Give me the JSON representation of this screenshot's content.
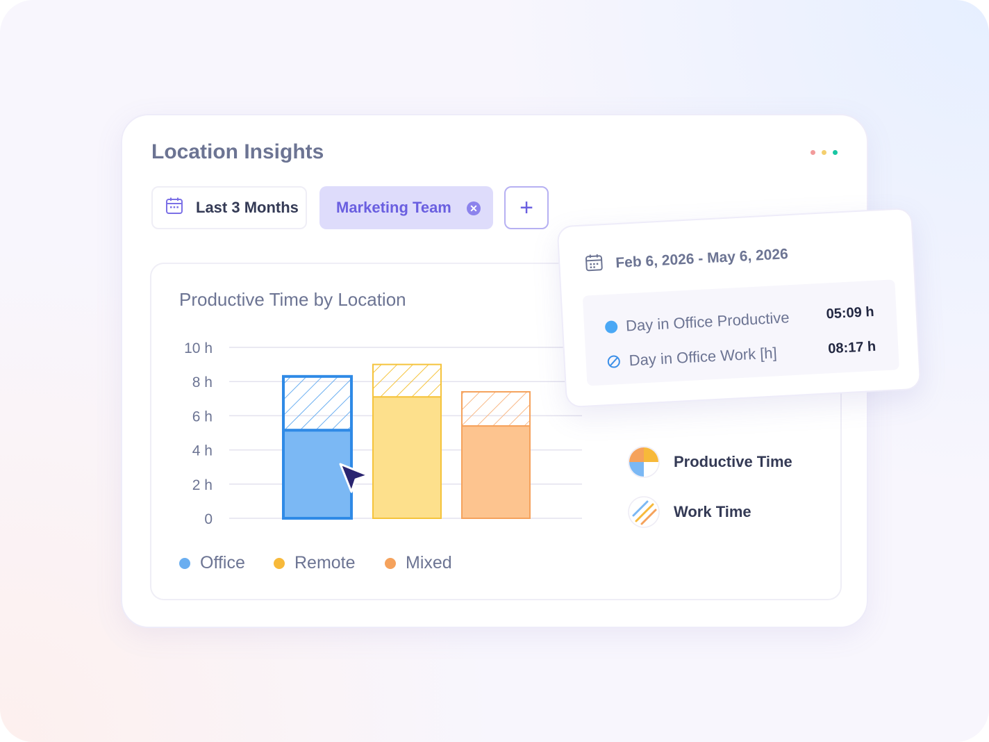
{
  "card": {
    "title": "Location Insights",
    "window_dots": [
      "#f29b9b",
      "#f4cf6e",
      "#19c6a3"
    ]
  },
  "filters": {
    "date_range_label": "Last 3 Months",
    "team_label": "Marketing Team",
    "team_remove_icon": "close-circle-icon",
    "add_icon": "plus-icon"
  },
  "chart": {
    "title": "Productive Time by Location",
    "legend": [
      {
        "label": "Office",
        "color": "#6aaef0"
      },
      {
        "label": "Remote",
        "color": "#f7b93a"
      },
      {
        "label": "Mixed",
        "color": "#f5a25c"
      }
    ],
    "side_legend": {
      "productive_label": "Productive Time",
      "work_label": "Work Time"
    }
  },
  "chart_data": {
    "type": "bar",
    "categories": [
      "Office",
      "Remote",
      "Mixed"
    ],
    "series": [
      {
        "name": "Productive Time",
        "values": [
          5.15,
          7.1,
          5.4
        ]
      },
      {
        "name": "Work Time",
        "values": [
          8.3,
          9.0,
          7.4
        ]
      }
    ],
    "y_ticks": [
      "10 h",
      "8 h",
      "6 h",
      "4 h",
      "2 h",
      "0"
    ],
    "ylim": [
      0,
      10
    ],
    "colors": {
      "Office": {
        "fill": "#7bb8f4",
        "stroke": "#2f8ae6"
      },
      "Remote": {
        "fill": "#fde08c",
        "stroke": "#f5c33b"
      },
      "Mixed": {
        "fill": "#fdc48f",
        "stroke": "#f5a25c"
      }
    },
    "selected_category": "Office",
    "grid": true
  },
  "popover": {
    "date_range": "Feb 6, 2026 - May 6, 2026",
    "rows": [
      {
        "label": "Day in Office Productive",
        "value": "05:09 h",
        "icon": "filled-dot-icon"
      },
      {
        "label": "Day in Office Work [h]",
        "value": "08:17 h",
        "icon": "hatched-dot-icon"
      }
    ]
  }
}
